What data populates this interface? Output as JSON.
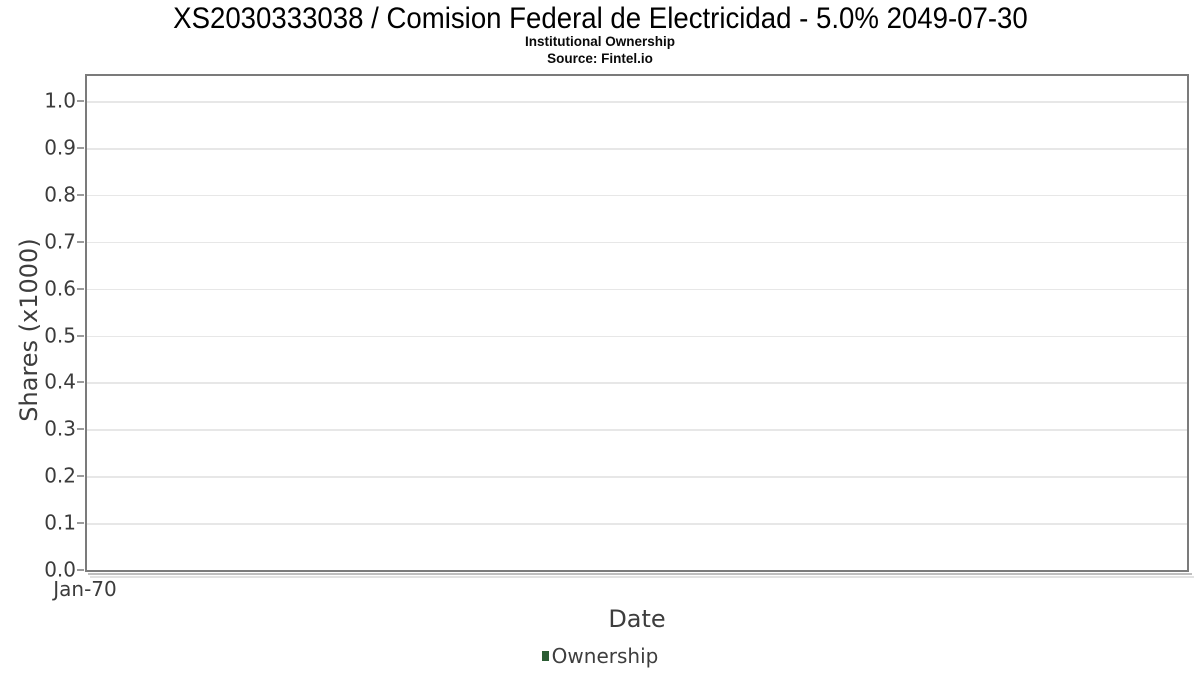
{
  "chart_data": {
    "type": "line",
    "title": "XS2030333038 / Comision Federal de Electricidad - 5.0% 2049-07-30",
    "subtitle": "Institutional Ownership",
    "source": "Source: Fintel.io",
    "xlabel": "Date",
    "ylabel": "Shares (x1000)",
    "x_tick_labels": [
      "Jan-70"
    ],
    "y_ticks": [
      0.0,
      0.1,
      0.2,
      0.3,
      0.4,
      0.5,
      0.6,
      0.7,
      0.8,
      0.9,
      1.0
    ],
    "y_tick_decimals": 1,
    "ylim": [
      0.0,
      1.058
    ],
    "grid": true,
    "legend_position": "bottom-center",
    "series": [
      {
        "name": "Ownership",
        "color": "#2b5c33",
        "x": [],
        "values": []
      }
    ]
  },
  "legend": {
    "items": [
      {
        "label": "Ownership",
        "color": "#2b5c33"
      }
    ]
  },
  "colors": {
    "background": "#ffffff",
    "plot_border": "#7b7b7b",
    "gridline": "#e7e7e7",
    "tick_mark": "#9b9b9b",
    "shadow": "#bfbfbf",
    "title_text": "#000000",
    "axis_label_text": "#3d3d3d",
    "tick_label_text": "#3c3c3c",
    "legend_text": "#3e3e3e"
  }
}
